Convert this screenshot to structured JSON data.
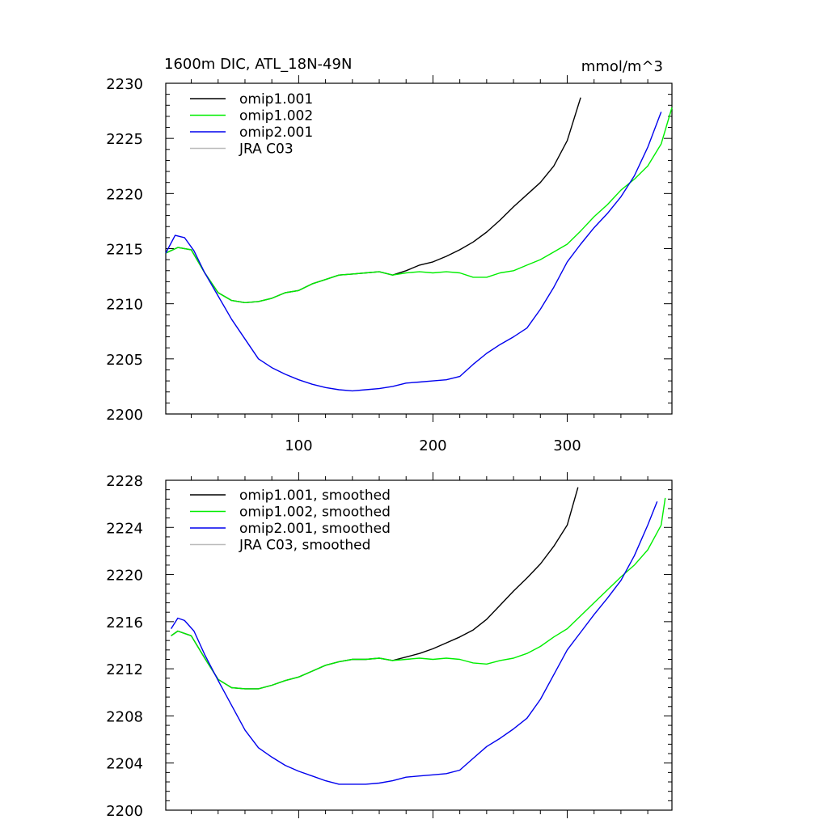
{
  "chart_data": [
    {
      "type": "line",
      "title": "1600m DIC, ATL_18N-49N",
      "units": "mmol/m^3",
      "xlabel": "",
      "ylabel": "",
      "xlim": [
        1,
        378
      ],
      "ylim": [
        2200,
        2230
      ],
      "y_ticks": [
        2200,
        2205,
        2210,
        2215,
        2220,
        2225,
        2230
      ],
      "x_ticks": [
        100,
        200,
        300
      ],
      "show_x_tick_labels": true,
      "grid": false,
      "legend_position": "top-left",
      "series": [
        {
          "name": "omip1.001",
          "color": "#000000",
          "x": [
            1,
            10,
            20,
            30,
            40,
            50,
            60,
            70,
            80,
            90,
            100,
            110,
            120,
            130,
            140,
            150,
            160,
            170,
            180,
            190,
            200,
            210,
            220,
            230,
            240,
            250,
            260,
            270,
            280,
            290,
            300,
            310
          ],
          "y": [
            2214.6,
            2215.1,
            2214.9,
            2212.8,
            2211.0,
            2210.3,
            2210.1,
            2210.2,
            2210.5,
            2211.0,
            2211.2,
            2211.8,
            2212.2,
            2212.6,
            2212.7,
            2212.8,
            2212.9,
            2212.6,
            2213.0,
            2213.5,
            2213.8,
            2214.3,
            2214.9,
            2215.6,
            2216.5,
            2217.6,
            2218.8,
            2219.9,
            2221.0,
            2222.5,
            2224.8,
            2228.7
          ]
        },
        {
          "name": "omip1.002",
          "color": "#00ee00",
          "x": [
            1,
            10,
            20,
            30,
            40,
            50,
            60,
            70,
            80,
            90,
            100,
            110,
            120,
            130,
            140,
            150,
            160,
            170,
            180,
            190,
            200,
            210,
            220,
            230,
            240,
            250,
            260,
            270,
            280,
            290,
            300,
            310,
            320,
            330,
            340,
            350,
            360,
            370,
            378
          ],
          "y": [
            2214.6,
            2215.1,
            2214.9,
            2212.8,
            2211.0,
            2210.3,
            2210.1,
            2210.2,
            2210.5,
            2211.0,
            2211.2,
            2211.8,
            2212.2,
            2212.6,
            2212.7,
            2212.8,
            2212.9,
            2212.6,
            2212.8,
            2212.9,
            2212.8,
            2212.9,
            2212.8,
            2212.4,
            2212.4,
            2212.8,
            2213.0,
            2213.5,
            2214.0,
            2214.7,
            2215.4,
            2216.6,
            2217.9,
            2219.0,
            2220.3,
            2221.3,
            2222.5,
            2224.5,
            2227.8
          ]
        },
        {
          "name": "omip2.001",
          "color": "#0000ee",
          "x": [
            1,
            8,
            15,
            22,
            30,
            40,
            50,
            60,
            70,
            80,
            90,
            100,
            110,
            120,
            130,
            140,
            150,
            160,
            170,
            180,
            190,
            200,
            210,
            220,
            230,
            240,
            250,
            260,
            270,
            280,
            290,
            300,
            310,
            320,
            330,
            340,
            350,
            360,
            370
          ],
          "y": [
            2214.6,
            2216.2,
            2216.0,
            2214.8,
            2212.8,
            2210.7,
            2208.6,
            2206.8,
            2205.0,
            2204.2,
            2203.6,
            2203.1,
            2202.7,
            2202.4,
            2202.2,
            2202.1,
            2202.2,
            2202.3,
            2202.5,
            2202.8,
            2202.9,
            2203.0,
            2203.1,
            2203.4,
            2204.5,
            2205.5,
            2206.3,
            2207.0,
            2207.8,
            2209.5,
            2211.5,
            2213.8,
            2215.4,
            2216.9,
            2218.2,
            2219.7,
            2221.6,
            2224.2,
            2227.4
          ]
        },
        {
          "name": "JRA C03",
          "color": "#bbbbbb",
          "x": [],
          "y": []
        }
      ]
    },
    {
      "type": "line",
      "title": "",
      "xlabel": "",
      "ylabel": "",
      "xlim": [
        1,
        378
      ],
      "ylim": [
        2200,
        2228
      ],
      "y_ticks": [
        2200,
        2204,
        2208,
        2212,
        2216,
        2220,
        2224,
        2228
      ],
      "x_ticks": [
        100,
        200,
        300
      ],
      "show_x_tick_labels": false,
      "grid": false,
      "legend_position": "top-left",
      "series": [
        {
          "name": "omip1.001, smoothed",
          "color": "#000000",
          "x": [
            5,
            10,
            20,
            30,
            40,
            50,
            60,
            70,
            80,
            90,
            100,
            110,
            120,
            130,
            140,
            150,
            160,
            170,
            180,
            190,
            200,
            210,
            220,
            230,
            240,
            250,
            260,
            270,
            280,
            290,
            300,
            308
          ],
          "y": [
            2214.8,
            2215.2,
            2214.8,
            2212.9,
            2211.1,
            2210.4,
            2210.3,
            2210.3,
            2210.6,
            2211.0,
            2211.3,
            2211.8,
            2212.3,
            2212.6,
            2212.8,
            2212.8,
            2212.9,
            2212.7,
            2213.0,
            2213.3,
            2213.7,
            2214.2,
            2214.7,
            2215.3,
            2216.2,
            2217.4,
            2218.6,
            2219.7,
            2220.9,
            2222.4,
            2224.2,
            2227.4
          ]
        },
        {
          "name": "omip1.002, smoothed",
          "color": "#00ee00",
          "x": [
            5,
            10,
            20,
            30,
            40,
            50,
            60,
            70,
            80,
            90,
            100,
            110,
            120,
            130,
            140,
            150,
            160,
            170,
            180,
            190,
            200,
            210,
            220,
            230,
            240,
            250,
            260,
            270,
            280,
            290,
            300,
            310,
            320,
            330,
            340,
            350,
            360,
            370,
            373
          ],
          "y": [
            2214.8,
            2215.2,
            2214.8,
            2212.9,
            2211.1,
            2210.4,
            2210.3,
            2210.3,
            2210.6,
            2211.0,
            2211.3,
            2211.8,
            2212.3,
            2212.6,
            2212.8,
            2212.8,
            2212.9,
            2212.7,
            2212.8,
            2212.9,
            2212.8,
            2212.9,
            2212.8,
            2212.5,
            2212.4,
            2212.7,
            2212.9,
            2213.3,
            2213.9,
            2214.7,
            2215.4,
            2216.5,
            2217.6,
            2218.7,
            2219.8,
            2220.8,
            2222.1,
            2224.2,
            2226.5
          ]
        },
        {
          "name": "omip2.001, smoothed",
          "color": "#0000ee",
          "x": [
            5,
            10,
            15,
            22,
            30,
            40,
            50,
            60,
            70,
            80,
            90,
            100,
            110,
            120,
            130,
            140,
            150,
            160,
            170,
            180,
            190,
            200,
            210,
            220,
            230,
            240,
            250,
            260,
            270,
            280,
            290,
            300,
            310,
            320,
            330,
            340,
            350,
            360,
            367
          ],
          "y": [
            2215.4,
            2216.3,
            2216.1,
            2215.2,
            2213.2,
            2211.0,
            2208.9,
            2206.8,
            2205.3,
            2204.5,
            2203.8,
            2203.3,
            2202.9,
            2202.5,
            2202.2,
            2202.2,
            2202.2,
            2202.3,
            2202.5,
            2202.8,
            2202.9,
            2203.0,
            2203.1,
            2203.4,
            2204.4,
            2205.4,
            2206.1,
            2206.9,
            2207.8,
            2209.4,
            2211.5,
            2213.6,
            2215.1,
            2216.6,
            2218.0,
            2219.5,
            2221.6,
            2224.2,
            2226.2
          ]
        },
        {
          "name": "JRA C03, smoothed",
          "color": "#bbbbbb",
          "x": [],
          "y": []
        }
      ]
    }
  ]
}
